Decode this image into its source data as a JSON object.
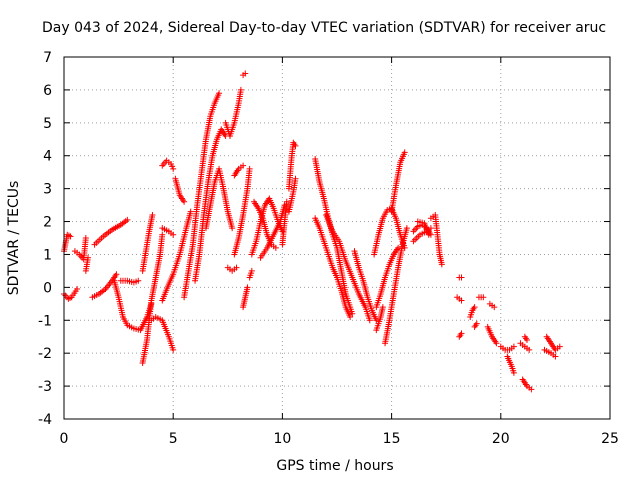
{
  "chart_data": {
    "type": "scatter",
    "title": "Day 043 of 2024, Sidereal Day-to-day VTEC variation (SDTVAR) for receiver aruc",
    "xlabel": "GPS time / hours",
    "ylabel": "SDTVAR / TECUs",
    "xlim": [
      0,
      25
    ],
    "ylim": [
      -4,
      7
    ],
    "xticks": [
      "0",
      "5",
      "10",
      "15",
      "20",
      "25"
    ],
    "yticks": [
      "-4",
      "-3",
      "-2",
      "-1",
      "0",
      "1",
      "2",
      "3",
      "4",
      "5",
      "6",
      "7"
    ],
    "grid": true,
    "marker": "plus",
    "color": "#ff0000",
    "series": [
      {
        "name": "SDTVAR",
        "segments": [
          [
            [
              0.0,
              1.1
            ],
            [
              0.15,
              1.6
            ],
            [
              0.3,
              1.55
            ]
          ],
          [
            [
              0.0,
              -0.2
            ],
            [
              0.2,
              -0.35
            ],
            [
              0.35,
              -0.3
            ],
            [
              0.6,
              -0.05
            ]
          ],
          [
            [
              0.5,
              1.1
            ],
            [
              0.7,
              1.0
            ],
            [
              0.9,
              0.85
            ],
            [
              1.0,
              1.5
            ]
          ],
          [
            [
              1.0,
              0.5
            ],
            [
              1.1,
              0.9
            ]
          ],
          [
            [
              1.3,
              -0.3
            ],
            [
              1.6,
              -0.2
            ],
            [
              1.9,
              -0.05
            ],
            [
              2.2,
              0.2
            ],
            [
              2.4,
              0.4
            ]
          ],
          [
            [
              1.4,
              1.3
            ],
            [
              1.8,
              1.55
            ],
            [
              2.2,
              1.75
            ],
            [
              2.6,
              1.9
            ],
            [
              2.9,
              2.05
            ]
          ],
          [
            [
              2.3,
              0.2
            ],
            [
              2.5,
              -0.3
            ],
            [
              2.7,
              -0.9
            ],
            [
              2.9,
              -1.15
            ],
            [
              3.2,
              -1.25
            ],
            [
              3.5,
              -1.3
            ],
            [
              3.8,
              -0.9
            ],
            [
              4.0,
              -0.5
            ]
          ],
          [
            [
              2.6,
              0.2
            ],
            [
              2.9,
              0.2
            ],
            [
              3.2,
              0.15
            ],
            [
              3.4,
              0.2
            ]
          ],
          [
            [
              3.6,
              -2.3
            ],
            [
              3.8,
              -1.6
            ],
            [
              4.0,
              -0.4
            ],
            [
              4.2,
              0.3
            ],
            [
              4.4,
              1.0
            ],
            [
              4.5,
              1.6
            ]
          ],
          [
            [
              3.6,
              0.5
            ],
            [
              3.75,
              1.1
            ],
            [
              3.9,
              1.7
            ],
            [
              4.05,
              2.2
            ]
          ],
          [
            [
              4.0,
              -1.0
            ],
            [
              4.2,
              -0.9
            ],
            [
              4.5,
              -1.0
            ],
            [
              4.8,
              -1.5
            ],
            [
              5.0,
              -1.9
            ]
          ],
          [
            [
              4.5,
              1.8
            ],
            [
              4.8,
              1.7
            ],
            [
              5.0,
              1.6
            ]
          ],
          [
            [
              4.5,
              -0.4
            ],
            [
              4.8,
              0.1
            ],
            [
              5.0,
              0.4
            ],
            [
              5.3,
              1.0
            ],
            [
              5.6,
              1.8
            ],
            [
              5.8,
              2.3
            ]
          ],
          [
            [
              4.5,
              3.7
            ],
            [
              4.7,
              3.85
            ],
            [
              4.9,
              3.75
            ],
            [
              5.0,
              3.6
            ]
          ],
          [
            [
              5.1,
              3.3
            ],
            [
              5.3,
              2.8
            ],
            [
              5.5,
              2.6
            ]
          ],
          [
            [
              5.5,
              -0.3
            ],
            [
              5.7,
              0.5
            ],
            [
              5.9,
              1.3
            ],
            [
              6.1,
              2.5
            ],
            [
              6.3,
              3.5
            ],
            [
              6.5,
              4.5
            ],
            [
              6.7,
              5.2
            ],
            [
              6.9,
              5.6
            ],
            [
              7.1,
              5.9
            ]
          ],
          [
            [
              6.0,
              0.2
            ],
            [
              6.2,
              1.0
            ],
            [
              6.4,
              2.2
            ],
            [
              6.6,
              3.2
            ],
            [
              6.8,
              4.0
            ],
            [
              7.0,
              4.5
            ],
            [
              7.2,
              4.8
            ],
            [
              7.4,
              4.6
            ]
          ],
          [
            [
              6.5,
              1.8
            ],
            [
              6.7,
              2.5
            ],
            [
              6.9,
              3.2
            ],
            [
              7.1,
              3.6
            ],
            [
              7.3,
              3.0
            ],
            [
              7.5,
              2.3
            ],
            [
              7.7,
              1.8
            ]
          ],
          [
            [
              7.4,
              5.0
            ],
            [
              7.6,
              4.6
            ],
            [
              7.8,
              5.0
            ],
            [
              8.0,
              5.6
            ],
            [
              8.1,
              6.0
            ]
          ],
          [
            [
              7.5,
              0.6
            ],
            [
              7.7,
              0.5
            ],
            [
              7.9,
              0.6
            ]
          ],
          [
            [
              7.8,
              1.0
            ],
            [
              8.0,
              1.5
            ],
            [
              8.2,
              2.2
            ],
            [
              8.4,
              3.0
            ],
            [
              8.5,
              3.6
            ]
          ],
          [
            [
              7.8,
              3.4
            ],
            [
              8.0,
              3.6
            ],
            [
              8.2,
              3.7
            ]
          ],
          [
            [
              8.2,
              -0.6
            ],
            [
              8.3,
              -0.3
            ],
            [
              8.4,
              0.0
            ]
          ],
          [
            [
              8.2,
              6.45
            ],
            [
              8.3,
              6.5
            ]
          ],
          [
            [
              8.5,
              0.3
            ],
            [
              8.6,
              0.5
            ]
          ],
          [
            [
              8.6,
              1.0
            ],
            [
              8.8,
              1.4
            ],
            [
              9.0,
              2.0
            ],
            [
              9.2,
              2.5
            ],
            [
              9.4,
              2.7
            ],
            [
              9.6,
              2.4
            ],
            [
              9.8,
              2.0
            ],
            [
              10.0,
              1.7
            ]
          ],
          [
            [
              8.7,
              2.6
            ],
            [
              8.9,
              2.4
            ],
            [
              9.1,
              2.1
            ],
            [
              9.3,
              1.6
            ],
            [
              9.5,
              1.3
            ],
            [
              9.7,
              1.2
            ]
          ],
          [
            [
              9.0,
              0.9
            ],
            [
              9.3,
              1.2
            ],
            [
              9.6,
              1.6
            ],
            [
              9.9,
              2.0
            ],
            [
              10.1,
              2.5
            ]
          ],
          [
            [
              10.0,
              1.3
            ],
            [
              10.1,
              2.0
            ],
            [
              10.2,
              2.6
            ]
          ],
          [
            [
              10.3,
              3.0
            ],
            [
              10.4,
              3.8
            ],
            [
              10.5,
              4.4
            ],
            [
              10.6,
              4.3
            ]
          ],
          [
            [
              10.3,
              2.3
            ],
            [
              10.5,
              2.9
            ],
            [
              10.6,
              3.3
            ]
          ],
          [
            [
              11.5,
              3.9
            ],
            [
              11.7,
              3.2
            ],
            [
              11.9,
              2.7
            ],
            [
              12.1,
              2.1
            ],
            [
              12.3,
              1.6
            ],
            [
              12.5,
              1.2
            ],
            [
              12.7,
              0.5
            ],
            [
              12.9,
              -0.2
            ],
            [
              13.2,
              -0.8
            ]
          ],
          [
            [
              11.5,
              2.1
            ],
            [
              11.7,
              1.8
            ],
            [
              11.9,
              1.4
            ],
            [
              12.1,
              1.0
            ],
            [
              12.3,
              0.6
            ],
            [
              12.5,
              0.3
            ],
            [
              12.7,
              -0.1
            ],
            [
              12.9,
              -0.6
            ],
            [
              13.1,
              -0.9
            ]
          ],
          [
            [
              12.0,
              2.2
            ],
            [
              12.3,
              1.7
            ],
            [
              12.6,
              1.4
            ],
            [
              12.9,
              0.8
            ],
            [
              13.2,
              0.3
            ],
            [
              13.5,
              -0.2
            ],
            [
              13.8,
              -0.6
            ],
            [
              14.0,
              -1.0
            ]
          ],
          [
            [
              13.3,
              1.1
            ],
            [
              13.5,
              0.6
            ],
            [
              13.7,
              0.2
            ],
            [
              13.9,
              -0.3
            ],
            [
              14.1,
              -0.7
            ],
            [
              14.3,
              -1.0
            ]
          ],
          [
            [
              14.2,
              1.0
            ],
            [
              14.4,
              1.6
            ],
            [
              14.6,
              2.1
            ],
            [
              14.8,
              2.35
            ],
            [
              15.0,
              2.4
            ],
            [
              15.2,
              2.1
            ],
            [
              15.4,
              1.6
            ],
            [
              15.6,
              1.2
            ]
          ],
          [
            [
              14.3,
              -0.6
            ],
            [
              14.5,
              -0.2
            ],
            [
              14.7,
              0.3
            ],
            [
              14.9,
              0.7
            ],
            [
              15.1,
              1.0
            ],
            [
              15.3,
              1.2
            ]
          ],
          [
            [
              14.7,
              -1.7
            ],
            [
              14.9,
              -1.0
            ],
            [
              15.1,
              -0.2
            ],
            [
              15.3,
              0.6
            ],
            [
              15.5,
              1.3
            ],
            [
              15.7,
              1.8
            ]
          ],
          [
            [
              15.0,
              2.3
            ],
            [
              15.2,
              3.1
            ],
            [
              15.4,
              3.8
            ],
            [
              15.6,
              4.1
            ]
          ],
          [
            [
              14.3,
              -1.3
            ],
            [
              14.5,
              -0.9
            ],
            [
              14.6,
              -0.6
            ]
          ],
          [
            [
              16.0,
              1.7
            ],
            [
              16.2,
              1.85
            ],
            [
              16.4,
              1.9
            ],
            [
              16.6,
              1.8
            ],
            [
              16.8,
              1.6
            ]
          ],
          [
            [
              16.0,
              1.4
            ],
            [
              16.3,
              1.6
            ],
            [
              16.6,
              1.7
            ],
            [
              16.8,
              1.8
            ]
          ],
          [
            [
              16.2,
              2.0
            ],
            [
              16.5,
              1.95
            ],
            [
              16.7,
              1.6
            ]
          ],
          [
            [
              16.8,
              2.1
            ],
            [
              17.0,
              2.2
            ],
            [
              17.1,
              1.6
            ],
            [
              17.2,
              1.0
            ],
            [
              17.3,
              0.7
            ]
          ],
          [
            [
              18.1,
              0.3
            ],
            [
              18.2,
              0.3
            ]
          ],
          [
            [
              18.0,
              -0.3
            ],
            [
              18.2,
              -0.4
            ]
          ],
          [
            [
              18.1,
              -1.5
            ],
            [
              18.2,
              -1.4
            ]
          ],
          [
            [
              18.6,
              -0.9
            ],
            [
              18.7,
              -0.7
            ],
            [
              18.8,
              -0.6
            ]
          ],
          [
            [
              18.8,
              -1.2
            ],
            [
              18.9,
              -1.1
            ]
          ],
          [
            [
              19.0,
              -0.3
            ],
            [
              19.2,
              -0.3
            ]
          ],
          [
            [
              19.5,
              -0.5
            ],
            [
              19.7,
              -0.6
            ]
          ],
          [
            [
              19.4,
              -1.2
            ],
            [
              19.6,
              -1.5
            ],
            [
              19.8,
              -1.7
            ]
          ],
          [
            [
              20.0,
              -1.8
            ],
            [
              20.2,
              -1.9
            ],
            [
              20.4,
              -1.9
            ],
            [
              20.6,
              -1.8
            ]
          ],
          [
            [
              20.3,
              -2.1
            ],
            [
              20.5,
              -2.4
            ],
            [
              20.6,
              -2.6
            ]
          ],
          [
            [
              20.9,
              -1.7
            ],
            [
              21.1,
              -1.8
            ],
            [
              21.3,
              -1.9
            ]
          ],
          [
            [
              21.0,
              -2.8
            ],
            [
              21.2,
              -3.0
            ],
            [
              21.4,
              -3.1
            ]
          ],
          [
            [
              21.1,
              -1.5
            ],
            [
              21.2,
              -1.6
            ]
          ],
          [
            [
              22.1,
              -1.5
            ],
            [
              22.3,
              -1.7
            ],
            [
              22.5,
              -1.9
            ],
            [
              22.7,
              -1.8
            ]
          ],
          [
            [
              22.0,
              -1.9
            ],
            [
              22.3,
              -2.0
            ],
            [
              22.5,
              -2.1
            ]
          ]
        ]
      }
    ]
  }
}
